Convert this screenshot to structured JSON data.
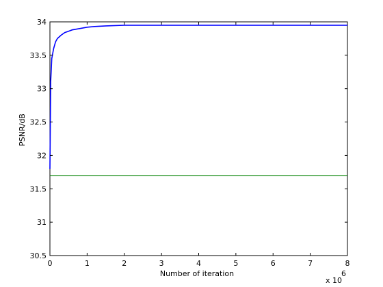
{
  "chart_data": {
    "type": "line",
    "title": "",
    "xlabel": "Number of iteration",
    "ylabel": "PSNR/dB",
    "x_multiplier_label": "x 10",
    "x_multiplier_exponent": "6",
    "xlim": [
      0,
      8
    ],
    "ylim": [
      30.5,
      34
    ],
    "x_ticks": [
      0,
      1,
      2,
      3,
      4,
      5,
      6,
      7,
      8
    ],
    "x_tick_labels": [
      "0",
      "1",
      "2",
      "3",
      "4",
      "5",
      "6",
      "7",
      "8"
    ],
    "y_ticks": [
      30.5,
      31,
      31.5,
      32,
      32.5,
      33,
      33.5,
      34
    ],
    "y_tick_labels": [
      "30.5",
      "31",
      "31.5",
      "32",
      "32.5",
      "33",
      "33.5",
      "34"
    ],
    "grid": false,
    "legend": "none",
    "series": [
      {
        "color": "#0000ff",
        "x": [
          0,
          0.02,
          0.05,
          0.1,
          0.15,
          0.2,
          0.3,
          0.4,
          0.5,
          0.6,
          0.8,
          1.0,
          1.2,
          1.5,
          2.0,
          2.5,
          3.0,
          3.5,
          4.0,
          4.5,
          5.0,
          5.5,
          6.0,
          6.5,
          7.0,
          7.5,
          8.0
        ],
        "y": [
          31.8,
          33.1,
          33.45,
          33.6,
          33.7,
          33.75,
          33.8,
          33.84,
          33.86,
          33.88,
          33.9,
          33.92,
          33.93,
          33.94,
          33.95,
          33.95,
          33.95,
          33.95,
          33.95,
          33.95,
          33.95,
          33.95,
          33.95,
          33.95,
          33.95,
          33.95,
          33.95
        ]
      },
      {
        "color": "#008000",
        "x": [
          0,
          8
        ],
        "y": [
          31.7,
          31.7
        ]
      }
    ]
  }
}
